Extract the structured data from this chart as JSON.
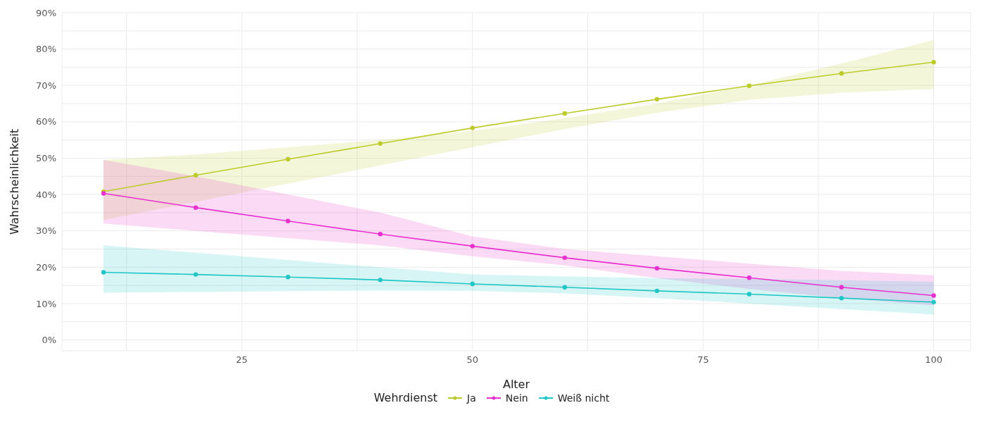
{
  "chart_data": {
    "type": "line",
    "xlabel": "Alter",
    "ylabel": "Wahrscheinlichkeit",
    "legend_title": "Wehrdienst",
    "x": [
      10,
      20,
      30,
      40,
      50,
      60,
      70,
      80,
      90,
      100
    ],
    "series": [
      {
        "name": "Ja",
        "color": "#bccb2a",
        "values": [
          40.8,
          45.3,
          49.7,
          54.0,
          58.3,
          62.3,
          66.2,
          69.9,
          73.3,
          76.4
        ],
        "lower": [
          33,
          38,
          43,
          48,
          53,
          58,
          62.5,
          66,
          68,
          69
        ],
        "upper": [
          49.5,
          51,
          53,
          55,
          57.5,
          61,
          65,
          70,
          76,
          82.5
        ]
      },
      {
        "name": "Nein",
        "color": "#e830cf",
        "values": [
          40.3,
          36.4,
          32.7,
          29.1,
          25.8,
          22.6,
          19.7,
          17.1,
          14.5,
          12.2
        ],
        "lower": [
          32,
          30,
          28,
          26,
          23,
          20.5,
          17,
          14,
          11.5,
          9.5
        ],
        "upper": [
          49.5,
          45,
          40,
          35,
          28.5,
          25,
          23,
          21,
          19,
          17.8
        ]
      },
      {
        "name": "Weiß nicht",
        "color": "#22c6c6",
        "values": [
          18.6,
          18.0,
          17.3,
          16.5,
          15.4,
          14.5,
          13.5,
          12.6,
          11.5,
          10.4
        ],
        "lower": [
          13,
          13.2,
          13.4,
          13.6,
          13.5,
          12.8,
          11.5,
          10,
          8.5,
          7
        ],
        "upper": [
          26,
          24,
          22,
          20,
          18,
          17.5,
          17,
          16.8,
          16.4,
          16
        ]
      }
    ],
    "xlim": [
      5.5,
      104
    ],
    "xticks": [
      {
        "value": 12.5,
        "label": null
      },
      25,
      {
        "value": 37.5,
        "label": null
      },
      50,
      {
        "value": 62.5,
        "label": null
      },
      75,
      {
        "value": 87.5,
        "label": null
      },
      100
    ],
    "ylim": [
      -3,
      90
    ],
    "yticks": [
      {
        "value": 0,
        "label": "0%"
      },
      {
        "value": 5,
        "label": null
      },
      {
        "value": 10,
        "label": "10%"
      },
      {
        "value": 15,
        "label": null
      },
      {
        "value": 20,
        "label": "20%"
      },
      {
        "value": 25,
        "label": null
      },
      {
        "value": 30,
        "label": "30%"
      },
      {
        "value": 35,
        "label": null
      },
      {
        "value": 40,
        "label": "40%"
      },
      {
        "value": 45,
        "label": null
      },
      {
        "value": 50,
        "label": "50%"
      },
      {
        "value": 55,
        "label": null
      },
      {
        "value": 60,
        "label": "60%"
      },
      {
        "value": 65,
        "label": null
      },
      {
        "value": 70,
        "label": "70%"
      },
      {
        "value": 75,
        "label": null
      },
      {
        "value": 80,
        "label": "80%"
      },
      {
        "value": 85,
        "label": null
      },
      {
        "value": 90,
        "label": "90%"
      }
    ],
    "grid": true,
    "legend": "bottom",
    "marker": "circle",
    "line_style": "solid"
  }
}
